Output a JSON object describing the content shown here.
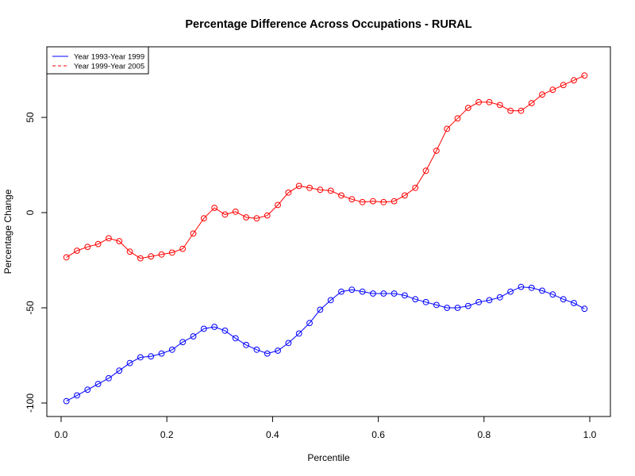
{
  "chart_data": {
    "type": "line",
    "title": "Percentage Difference Across Occupations - RURAL",
    "xlabel": "Percentile",
    "ylabel": "Percentage Change",
    "xlim": [
      0.0,
      1.0
    ],
    "ylim": [
      -100,
      70
    ],
    "xticks": [
      0.0,
      0.2,
      0.4,
      0.6,
      0.8,
      1.0
    ],
    "xtick_labels": [
      "0.0",
      "0.2",
      "0.4",
      "0.6",
      "0.8",
      "1.0"
    ],
    "yticks": [
      -100,
      -50,
      0,
      50
    ],
    "ytick_labels": [
      "-100",
      "-50",
      "0",
      "50"
    ],
    "grid": false,
    "legend_position": "top-left",
    "x": [
      0.01,
      0.03,
      0.05,
      0.07,
      0.09,
      0.11,
      0.13,
      0.15,
      0.17,
      0.19,
      0.21,
      0.23,
      0.25,
      0.27,
      0.29,
      0.31,
      0.33,
      0.35,
      0.37,
      0.39,
      0.41,
      0.43,
      0.45,
      0.47,
      0.49,
      0.51,
      0.53,
      0.55,
      0.57,
      0.59,
      0.61,
      0.63,
      0.65,
      0.67,
      0.69,
      0.71,
      0.73,
      0.75,
      0.77,
      0.79,
      0.81,
      0.83,
      0.85,
      0.87,
      0.89,
      0.91,
      0.93,
      0.95,
      0.97,
      0.99
    ],
    "series": [
      {
        "name": "Year 1993-Year 1999",
        "color": "#0000ff",
        "line_style": "solid",
        "marker": "circle",
        "values": [
          -99,
          -96,
          -93,
          -90,
          -87,
          -83,
          -79,
          -76,
          -75.5,
          -74,
          -72,
          -68,
          -65,
          -61,
          -60,
          -62,
          -66,
          -69.5,
          -72,
          -74,
          -72.5,
          -68.5,
          -63.5,
          -58,
          -51,
          -46,
          -41.5,
          -40.5,
          -41.5,
          -42.5,
          -42.5,
          -42.5,
          -43.5,
          -45.5,
          -47,
          -48.5,
          -50,
          -50,
          -49,
          -47,
          -46,
          -44.5,
          -41.5,
          -39,
          -39.5,
          -41,
          -43,
          -45.5,
          -47.5,
          -50.5
        ]
      },
      {
        "name": "Year 1999-Year 2005",
        "color": "#ff0000",
        "line_style": "dashed",
        "marker": "circle",
        "values": [
          -23.5,
          -20,
          -18,
          -16.5,
          -13.5,
          -15,
          -20.5,
          -24,
          -23,
          -22,
          -21,
          -19,
          -11,
          -3,
          2.5,
          -1,
          0.5,
          -2.5,
          -3,
          -1.5,
          4,
          10.5,
          14,
          13,
          12,
          11.5,
          9,
          7,
          5.5,
          6,
          5.5,
          6,
          9,
          13,
          22,
          32.5,
          44,
          49.5,
          55,
          58,
          58,
          56.5,
          53.5,
          53.5,
          57.5,
          62,
          64.5,
          67,
          69.5,
          72
        ]
      }
    ]
  }
}
